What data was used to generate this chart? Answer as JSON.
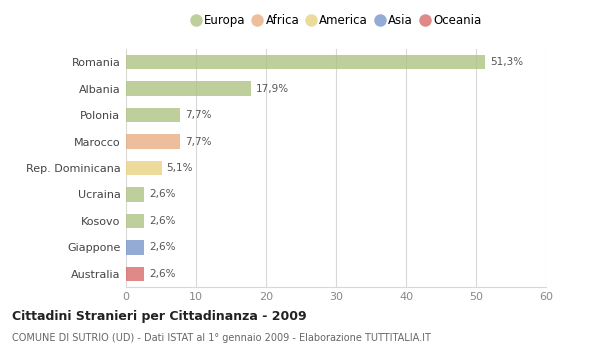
{
  "categories": [
    "Romania",
    "Albania",
    "Polonia",
    "Marocco",
    "Rep. Dominicana",
    "Ucraina",
    "Kosovo",
    "Giappone",
    "Australia"
  ],
  "values": [
    51.3,
    17.9,
    7.7,
    7.7,
    5.1,
    2.6,
    2.6,
    2.6,
    2.6
  ],
  "labels": [
    "51,3%",
    "17,9%",
    "7,7%",
    "7,7%",
    "5,1%",
    "2,6%",
    "2,6%",
    "2,6%",
    "2,6%"
  ],
  "bar_colors": [
    "#a8c07a",
    "#a8c07a",
    "#a8c07a",
    "#e8a97a",
    "#e8d07a",
    "#a8c07a",
    "#a8c07a",
    "#7090c8",
    "#d86060"
  ],
  "legend_labels": [
    "Europa",
    "Africa",
    "America",
    "Asia",
    "Oceania"
  ],
  "legend_colors": [
    "#a8c07a",
    "#e8a97a",
    "#e8d07a",
    "#7090c8",
    "#d86060"
  ],
  "xlim": [
    0,
    60
  ],
  "xticks": [
    0,
    10,
    20,
    30,
    40,
    50,
    60
  ],
  "title": "Cittadini Stranieri per Cittadinanza - 2009",
  "subtitle": "COMUNE DI SUTRIO (UD) - Dati ISTAT al 1° gennaio 2009 - Elaborazione TUTTITALIA.IT",
  "background_color": "#ffffff",
  "grid_color": "#d8d8d8",
  "bar_alpha": 0.75,
  "bar_height": 0.55
}
